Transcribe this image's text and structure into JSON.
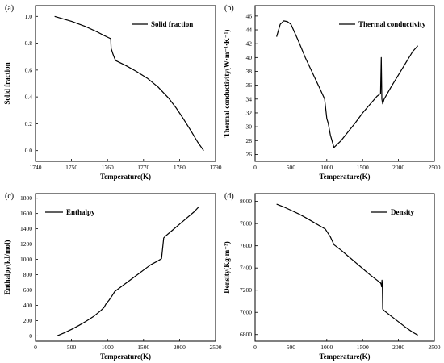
{
  "chart_data": [
    {
      "panel": "(a)",
      "type": "line",
      "xlabel": "Temperature(K)",
      "ylabel": "Solid fraction",
      "xlim": [
        1740,
        1790
      ],
      "ylim": [
        -0.08,
        1.08
      ],
      "xticks": [
        1740,
        1750,
        1760,
        1770,
        1780,
        1790
      ],
      "yticks": [
        0.0,
        0.2,
        0.4,
        0.6,
        0.8,
        1.0
      ],
      "ytick_labels": [
        "0.0",
        "0.2",
        "0.4",
        "0.6",
        "0.8",
        "1.0"
      ],
      "legend": "Solid fraction",
      "legend_position": "top-right",
      "grid": false,
      "x": [
        1745.3,
        1750,
        1754,
        1757,
        1759,
        1760.3,
        1760.9,
        1761.0,
        1761.2,
        1761.5,
        1762.0,
        1762.3,
        1765,
        1768,
        1771,
        1774,
        1777,
        1779,
        1781,
        1783,
        1785,
        1786.7
      ],
      "y": [
        1.0,
        0.963,
        0.923,
        0.886,
        0.858,
        0.841,
        0.834,
        0.76,
        0.745,
        0.72,
        0.685,
        0.67,
        0.635,
        0.59,
        0.54,
        0.475,
        0.39,
        0.32,
        0.24,
        0.155,
        0.065,
        0.0
      ]
    },
    {
      "panel": "(b)",
      "type": "line",
      "xlabel": "Temperature(K)",
      "ylabel": "Thermal conductivity(W·m⁻¹·K⁻¹)",
      "xlim": [
        0,
        2500
      ],
      "ylim": [
        25,
        47.5
      ],
      "xticks": [
        0,
        500,
        1000,
        1500,
        2000,
        2500
      ],
      "yticks": [
        26,
        28,
        30,
        32,
        34,
        36,
        38,
        40,
        42,
        44,
        46
      ],
      "ytick_labels": [
        "26",
        "28",
        "30",
        "32",
        "34",
        "36",
        "38",
        "40",
        "42",
        "44",
        "46"
      ],
      "legend": "Thermal conductivity",
      "legend_position": "top-right",
      "grid": false,
      "x": [
        300,
        350,
        400,
        450,
        500,
        600,
        700,
        800,
        900,
        970,
        1000,
        1020,
        1050,
        1100,
        1200,
        1300,
        1400,
        1500,
        1600,
        1700,
        1750,
        1760,
        1768,
        1780,
        1800,
        1900,
        2000,
        2100,
        2200,
        2270
      ],
      "y": [
        43.0,
        44.8,
        45.3,
        45.2,
        44.8,
        42.5,
        40.0,
        37.8,
        35.6,
        34.0,
        31.2,
        30.5,
        28.8,
        27.0,
        28.0,
        29.3,
        30.6,
        32.0,
        33.2,
        34.4,
        34.8,
        40.0,
        34.0,
        33.3,
        34.0,
        35.8,
        37.5,
        39.2,
        40.9,
        41.7
      ]
    },
    {
      "panel": "(c)",
      "type": "line",
      "xlabel": "Temperature(K)",
      "ylabel": "Enthalpy(kJ/mol)",
      "xlim": [
        0,
        2500
      ],
      "ylim": [
        -70,
        1860
      ],
      "xticks": [
        0,
        500,
        1000,
        1500,
        2000,
        2500
      ],
      "yticks": [
        0,
        200,
        400,
        600,
        800,
        1000,
        1200,
        1400,
        1600,
        1800
      ],
      "ytick_labels": [
        "0",
        "200",
        "400",
        "600",
        "800",
        "1000",
        "1200",
        "1400",
        "1600",
        "1800"
      ],
      "legend": "Enthalpy",
      "legend_position": "top-left",
      "grid": false,
      "x": [
        300,
        400,
        500,
        600,
        700,
        800,
        900,
        950,
        980,
        1020,
        1060,
        1100,
        1200,
        1300,
        1400,
        1500,
        1600,
        1700,
        1750,
        1780,
        1800,
        1900,
        2000,
        2100,
        2200,
        2270
      ],
      "y": [
        0,
        40,
        85,
        135,
        190,
        250,
        325,
        370,
        420,
        465,
        520,
        580,
        650,
        720,
        790,
        860,
        930,
        980,
        1010,
        1280,
        1300,
        1380,
        1460,
        1540,
        1620,
        1690
      ]
    },
    {
      "panel": "(d)",
      "type": "line",
      "xlabel": "Temperature(K)",
      "ylabel": "Density(Kg·m⁻³)",
      "xlim": [
        0,
        2500
      ],
      "ylim": [
        6740,
        8070
      ],
      "xticks": [
        0,
        500,
        1000,
        1500,
        2000,
        2500
      ],
      "yticks": [
        6800,
        7000,
        7200,
        7400,
        7600,
        7800,
        8000
      ],
      "ytick_labels": [
        "6800",
        "7000",
        "7200",
        "7400",
        "7600",
        "7800",
        "8000"
      ],
      "legend": "Density",
      "legend_position": "top-right",
      "grid": false,
      "x": [
        300,
        400,
        500,
        600,
        700,
        800,
        900,
        980,
        1000,
        1050,
        1100,
        1200,
        1300,
        1400,
        1500,
        1600,
        1700,
        1750,
        1760,
        1765,
        1770,
        1775,
        1780,
        1800,
        1900,
        2000,
        2100,
        2200,
        2270
      ],
      "y": [
        7975,
        7950,
        7920,
        7890,
        7855,
        7818,
        7780,
        7750,
        7730,
        7680,
        7610,
        7560,
        7505,
        7450,
        7395,
        7340,
        7290,
        7265,
        7250,
        7230,
        7290,
        7250,
        7030,
        7015,
        6965,
        6915,
        6865,
        6820,
        6795
      ]
    }
  ]
}
